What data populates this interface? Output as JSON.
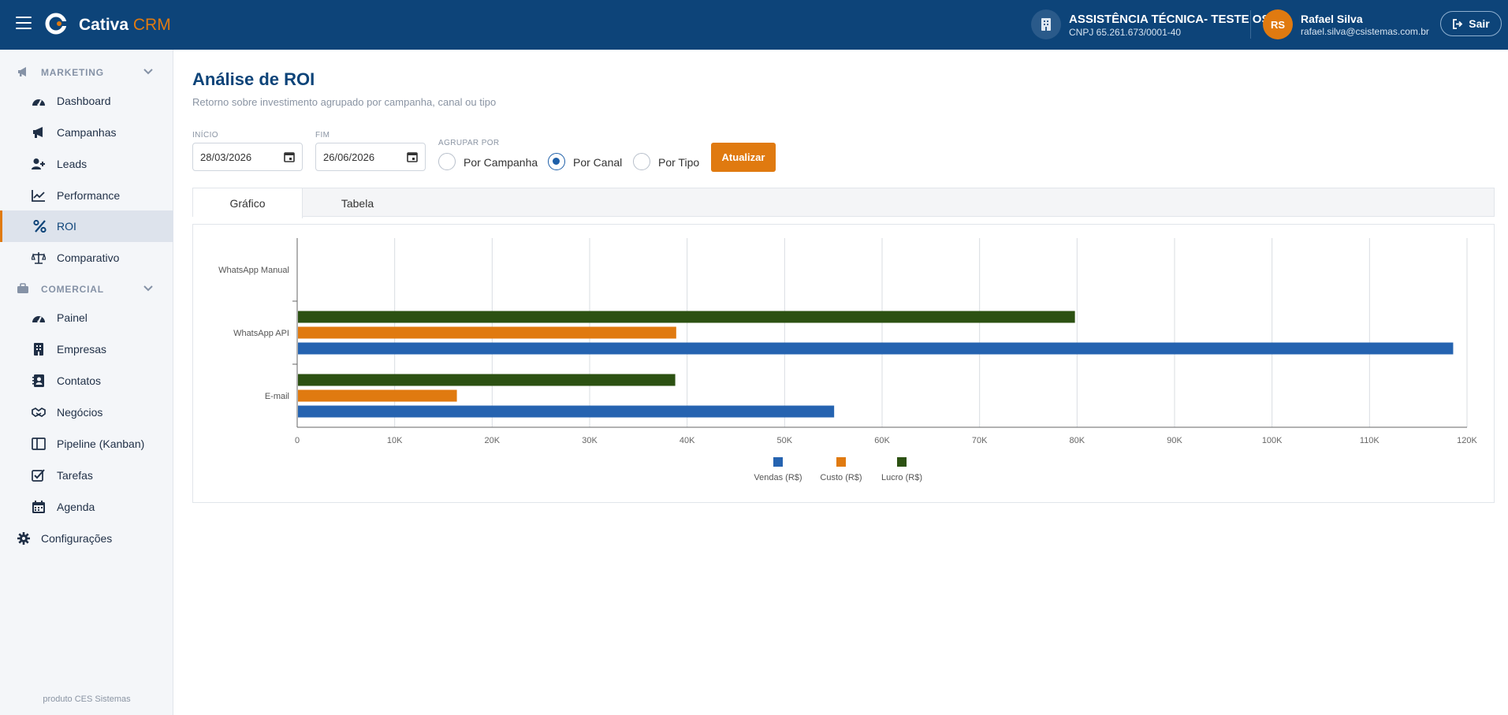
{
  "app": {
    "brand_main": "Cativa",
    "brand_accent": "CRM",
    "company_name": "ASSISTÊNCIA TÉCNICA- TESTE OS",
    "company_cnpj": "CNPJ 65.261.673/0001-40",
    "user_initials": "RS",
    "user_name": "Rafael Silva",
    "user_email": "rafael.silva@csistemas.com.br",
    "logout_label": "Sair"
  },
  "sidebar": {
    "marketing_label": "MARKETING",
    "marketing_items": [
      {
        "label": "Dashboard",
        "icon": "gauge-icon"
      },
      {
        "label": "Campanhas",
        "icon": "megaphone-icon"
      },
      {
        "label": "Leads",
        "icon": "user-plus-icon"
      },
      {
        "label": "Performance",
        "icon": "chart-line-icon"
      },
      {
        "label": "ROI",
        "icon": "percent-icon"
      },
      {
        "label": "Comparativo",
        "icon": "scale-icon"
      }
    ],
    "comercial_label": "COMERCIAL",
    "comercial_items": [
      {
        "label": "Painel",
        "icon": "gauge-icon"
      },
      {
        "label": "Empresas",
        "icon": "building-icon"
      },
      {
        "label": "Contatos",
        "icon": "address-book-icon"
      },
      {
        "label": "Negócios",
        "icon": "handshake-icon"
      },
      {
        "label": "Pipeline (Kanban)",
        "icon": "columns-icon"
      },
      {
        "label": "Tarefas",
        "icon": "checkbox-icon"
      },
      {
        "label": "Agenda",
        "icon": "calendar-icon"
      }
    ],
    "settings_label": "Configurações",
    "active_item": "ROI",
    "footer": "produto CES Sistemas"
  },
  "page": {
    "title": "Análise de ROI",
    "subtitle": "Retorno sobre investimento agrupado por campanha, canal ou tipo"
  },
  "filters": {
    "start_label": "INÍCIO",
    "start_value": "28/03/2026",
    "end_label": "FIM",
    "end_value": "26/06/2026",
    "group_label": "AGRUPAR POR",
    "group_options": [
      "Por Campanha",
      "Por Canal",
      "Por Tipo"
    ],
    "group_selected": "Por Canal",
    "update_label": "Atualizar"
  },
  "tabs": [
    "Gráfico",
    "Tabela"
  ],
  "active_tab": "Gráfico",
  "colors": {
    "primary": "#0d4479",
    "accent": "#e07a10",
    "vendas": "#2563b0",
    "custo": "#e07a10",
    "lucro": "#2c5112"
  },
  "chart_data": {
    "type": "bar",
    "orientation": "horizontal",
    "categories": [
      "WhatsApp Manual",
      "WhatsApp API",
      "E-mail"
    ],
    "series": [
      {
        "name": "Vendas (R$)",
        "values": [
          0,
          118500,
          55000
        ]
      },
      {
        "name": "Custo (R$)",
        "values": [
          0,
          38800,
          16300
        ]
      },
      {
        "name": "Lucro (R$)",
        "values": [
          0,
          79700,
          38700
        ]
      }
    ],
    "xlim": [
      0,
      120000
    ],
    "xticks": [
      "0",
      "10K",
      "20K",
      "30K",
      "40K",
      "50K",
      "60K",
      "70K",
      "80K",
      "90K",
      "100K",
      "110K",
      "120K"
    ],
    "grid": true,
    "legend_position": "bottom"
  }
}
